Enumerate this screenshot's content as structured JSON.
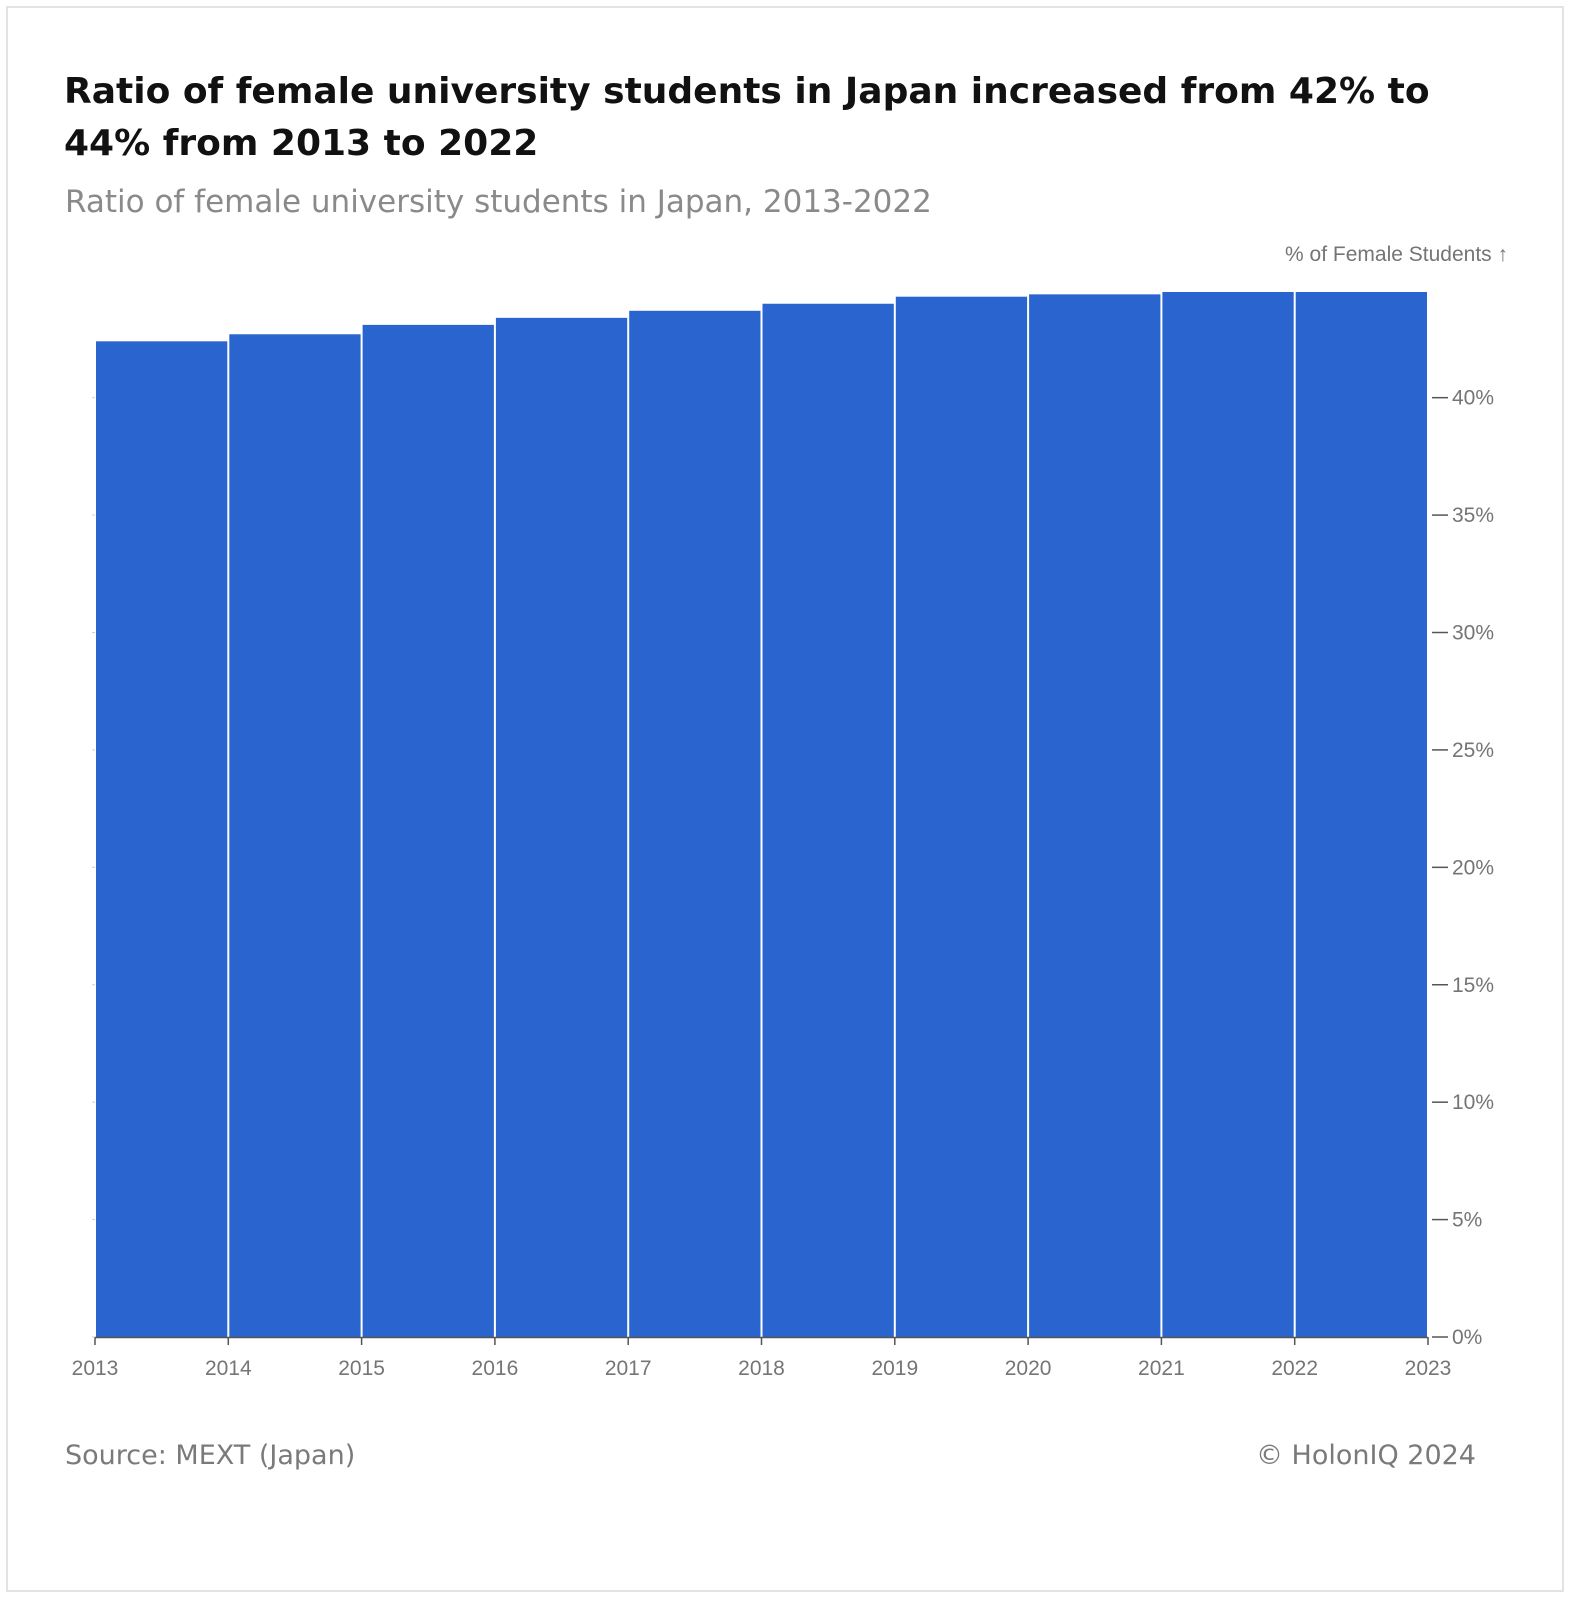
{
  "title": "Ratio of female university students in Japan increased from 42% to 44% from 2013 to 2022",
  "subtitle": "Ratio of female university students in Japan, 2013-2022",
  "source": "Source: MEXT (Japan)",
  "copyright": "© HolonIQ 2024",
  "chart_data": {
    "type": "bar",
    "title": "Ratio of female university students in Japan increased from 42% to 44% from 2013 to 2022",
    "subtitle": "Ratio of female university students in Japan, 2013-2022",
    "ylabel": "% of Female Students ↑",
    "xlabel": "",
    "categories": [
      "2013",
      "2014",
      "2015",
      "2016",
      "2017",
      "2018",
      "2019",
      "2020",
      "2021",
      "2022"
    ],
    "values": [
      42.4,
      42.7,
      43.1,
      43.4,
      43.7,
      44.0,
      44.3,
      44.4,
      44.5,
      44.5
    ],
    "x_ticks": [
      "2013",
      "2014",
      "2015",
      "2016",
      "2017",
      "2018",
      "2019",
      "2020",
      "2021",
      "2022",
      "2023"
    ],
    "y_ticks": [
      "0%",
      "5%",
      "10%",
      "15%",
      "20%",
      "25%",
      "30%",
      "35%",
      "40%"
    ],
    "y_tick_values": [
      0,
      5,
      10,
      15,
      20,
      25,
      30,
      35,
      40
    ],
    "ylim": [
      0,
      44.5
    ],
    "y_axis_position": "right",
    "grid": false,
    "bar_color": "#2a65cf"
  }
}
